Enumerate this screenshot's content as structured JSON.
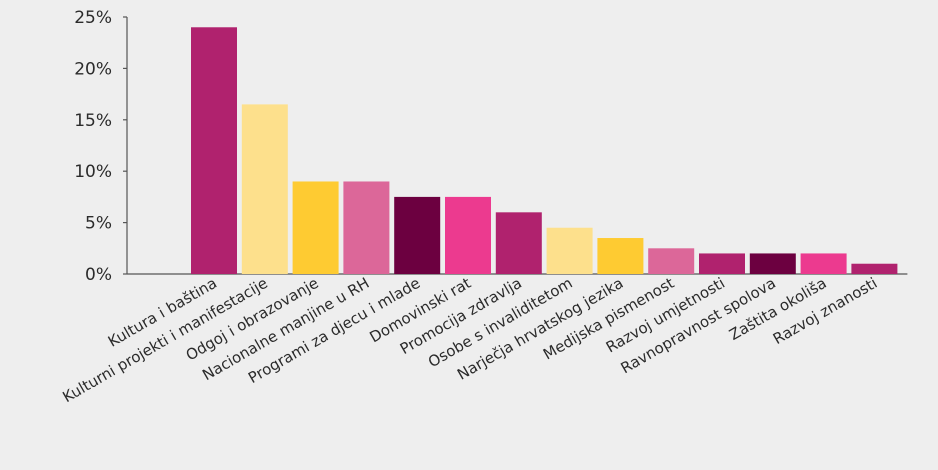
{
  "chart_data": {
    "type": "bar",
    "title": "",
    "xlabel": "",
    "ylabel": "",
    "ylim": [
      0,
      25
    ],
    "ytick_values": [
      0,
      5,
      10,
      15,
      20,
      25
    ],
    "ytick_labels": [
      "0%",
      "5%",
      "10%",
      "15%",
      "20%",
      "25%"
    ],
    "grid": false,
    "legend": "none",
    "categories": [
      "Kultura i baština",
      "Kulturni projekti i manifestacije",
      "Odgoj i obrazovanje",
      "Nacionalne manjine u RH",
      "Programi za djecu i mlade",
      "Domovinski rat",
      "Promocija zdravlja",
      "Osobe s invaliditetom",
      "Narječja hrvatskog jezika",
      "Medijska pismenost",
      "Razvoj umjetnosti",
      "Ravnopravnost spolova",
      "Zaštita okoliša",
      "Razvoj znanosti"
    ],
    "values": [
      24,
      16.5,
      9,
      9,
      7.5,
      7.5,
      6,
      4.5,
      3.5,
      2.5,
      2,
      2,
      2,
      1
    ],
    "colors": [
      "#b0226e",
      "#fde08c",
      "#fecb32",
      "#dc6799",
      "#6c0040",
      "#ec3a8f",
      "#b0226e",
      "#fde08c",
      "#fecb32",
      "#dc6799",
      "#b0226e",
      "#6c0040",
      "#ec3a8f",
      "#b0226e"
    ],
    "axis_color": "#555555"
  }
}
